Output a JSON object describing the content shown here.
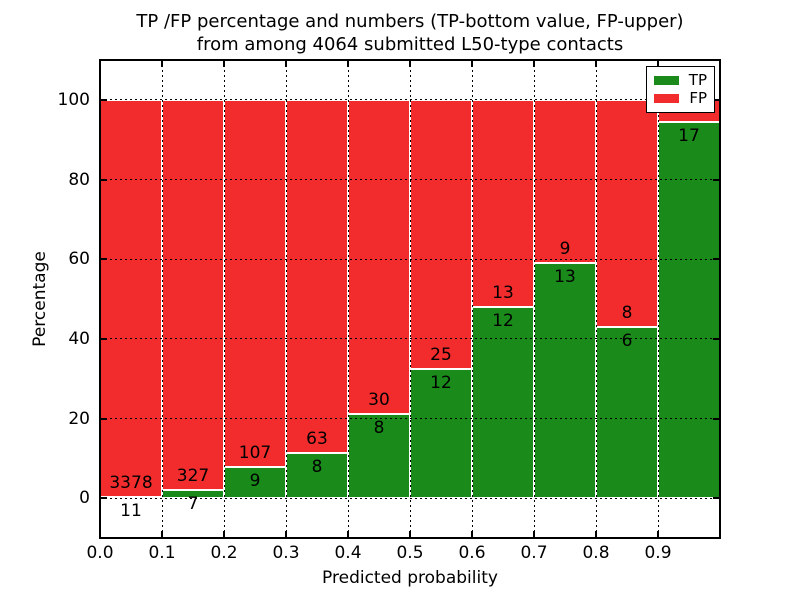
{
  "figure": {
    "title_line1": "TP /FP percentage and numbers (TP-bottom value, FP-upper)",
    "title_line2": "from among 4064 submitted L50-type contacts",
    "background_color": "#ffffff"
  },
  "chart_data": {
    "type": "bar",
    "stacked": true,
    "title": "TP /FP percentage and numbers (TP-bottom value, FP-upper) from among 4064 submitted L50-type contacts",
    "xlabel": "Predicted probability",
    "ylabel": "Percentage",
    "xlim": [
      0.0,
      1.0
    ],
    "ylim": [
      -10,
      110
    ],
    "bin_width": 0.1,
    "grid": "dotted",
    "grid_on": true,
    "legend_position": "upper right",
    "xtick_labels": [
      "0.0",
      "0.1",
      "0.2",
      "0.3",
      "0.4",
      "0.5",
      "0.6",
      "0.7",
      "0.8",
      "0.9"
    ],
    "xtick_values": [
      0.0,
      0.1,
      0.2,
      0.3,
      0.4,
      0.5,
      0.6,
      0.7,
      0.8,
      0.9
    ],
    "ytick_labels": [
      "0",
      "20",
      "40",
      "60",
      "80",
      "100"
    ],
    "ytick_values": [
      0,
      20,
      40,
      60,
      80,
      100
    ],
    "series": [
      {
        "name": "TP",
        "color": "#1a8a1a"
      },
      {
        "name": "FP",
        "color": "#f22c2c"
      }
    ],
    "bins": [
      {
        "range": "0.0-0.1",
        "tp_count": "11",
        "fp_count": "3378",
        "tp_pct": 0.32,
        "fp_pct": 99.68
      },
      {
        "range": "0.1-0.2",
        "tp_count": "7",
        "fp_count": "327",
        "tp_pct": 2.1,
        "fp_pct": 97.9
      },
      {
        "range": "0.2-0.3",
        "tp_count": "9",
        "fp_count": "107",
        "tp_pct": 7.76,
        "fp_pct": 92.24
      },
      {
        "range": "0.3-0.4",
        "tp_count": "8",
        "fp_count": "63",
        "tp_pct": 11.27,
        "fp_pct": 88.73
      },
      {
        "range": "0.4-0.5",
        "tp_count": "8",
        "fp_count": "30",
        "tp_pct": 21.05,
        "fp_pct": 78.95
      },
      {
        "range": "0.5-0.6",
        "tp_count": "12",
        "fp_count": "25",
        "tp_pct": 32.43,
        "fp_pct": 67.57
      },
      {
        "range": "0.6-0.7",
        "tp_count": "12",
        "fp_count": "13",
        "tp_pct": 48.0,
        "fp_pct": 52.0
      },
      {
        "range": "0.7-0.8",
        "tp_count": "13",
        "fp_count": "9",
        "tp_pct": 59.09,
        "fp_pct": 40.91
      },
      {
        "range": "0.8-0.9",
        "tp_count": "6",
        "fp_count": "8",
        "tp_pct": 42.86,
        "fp_pct": 57.14
      },
      {
        "range": "0.9-1.0",
        "tp_count": "17",
        "fp_count": "",
        "tp_pct": 94.44,
        "fp_pct": 5.56
      }
    ],
    "legend": [
      {
        "label": "TP",
        "color": "#1a8a1a"
      },
      {
        "label": "FP",
        "color": "#f22c2c"
      }
    ]
  }
}
